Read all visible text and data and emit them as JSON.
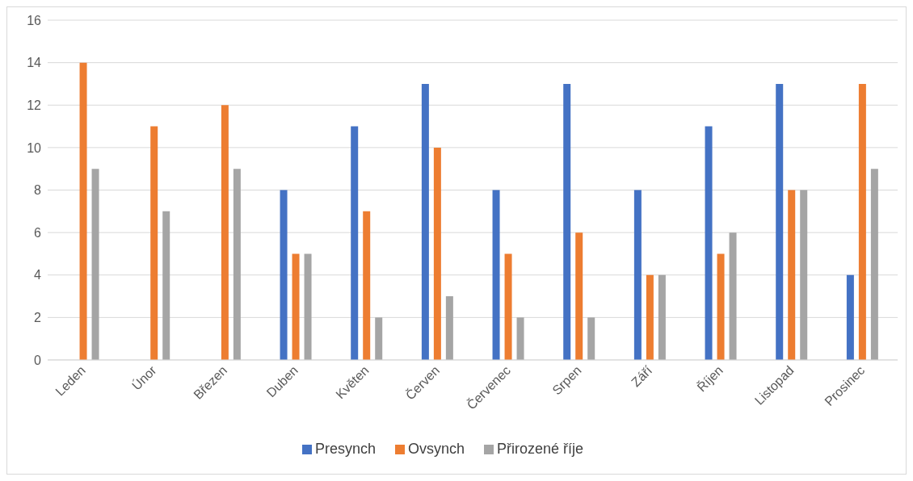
{
  "chart_data": {
    "type": "bar",
    "categories": [
      "Leden",
      "Únor",
      "Březen",
      "Duben",
      "Květen",
      "Červen",
      "Červenec",
      "Srpen",
      "Září",
      "Říjen",
      "Listopad",
      "Prosinec"
    ],
    "series": [
      {
        "name": "Presynch",
        "color": "#4472c4",
        "values": [
          null,
          null,
          null,
          8,
          11,
          13,
          8,
          13,
          8,
          11,
          13,
          4
        ]
      },
      {
        "name": "Ovsynch",
        "color": "#ed7d31",
        "values": [
          14,
          11,
          12,
          5,
          7,
          10,
          5,
          6,
          4,
          5,
          8,
          13
        ]
      },
      {
        "name": "Přirozené říje",
        "color": "#a5a5a5",
        "values": [
          9,
          7,
          9,
          5,
          2,
          3,
          2,
          2,
          4,
          6,
          8,
          9
        ]
      }
    ],
    "ylim": [
      0,
      16
    ],
    "yticks": [
      0,
      2,
      4,
      6,
      8,
      10,
      12,
      14,
      16
    ],
    "grid": "y",
    "legend": "bottom"
  }
}
